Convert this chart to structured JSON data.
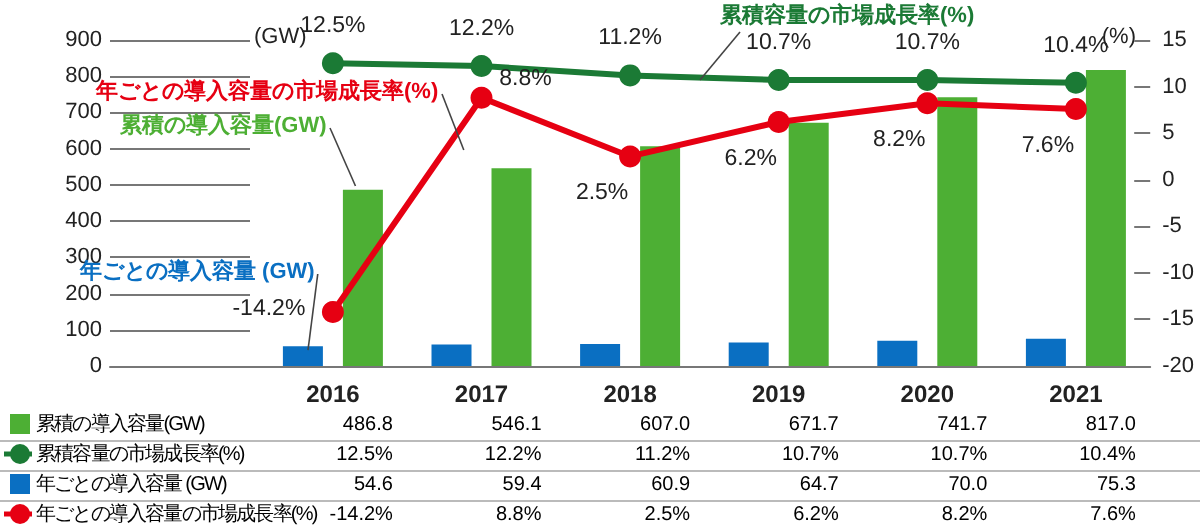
{
  "chart_data": {
    "type": "bar",
    "categories": [
      "2016",
      "2017",
      "2018",
      "2019",
      "2020",
      "2021"
    ],
    "series": [
      {
        "name": "累積の導入容量(GW)",
        "color": "#4daf34",
        "values": [
          486.8,
          546.1,
          607.0,
          671.7,
          741.7,
          817.0
        ],
        "value_labels": [
          "486.8",
          "546.1",
          "607.0",
          "671.7",
          "741.7",
          "817.0"
        ]
      },
      {
        "name": "累積容量の市場成長率(%)",
        "type": "line",
        "axis": "y2",
        "color": "#1b7a35",
        "values": [
          12.5,
          12.2,
          11.2,
          10.7,
          10.7,
          10.4
        ],
        "value_labels": [
          "12.5%",
          "12.2%",
          "11.2%",
          "10.7%",
          "10.7%",
          "10.4%"
        ]
      },
      {
        "name": "年ごとの導入容量 (GW)",
        "color": "#0a6fc2",
        "values": [
          54.6,
          59.4,
          60.9,
          64.7,
          70.0,
          75.3
        ],
        "value_labels": [
          "54.6",
          "59.4",
          "60.9",
          "64.7",
          "70.0",
          "75.3"
        ]
      },
      {
        "name": "年ごとの導入容量の市場成長率(%)",
        "type": "line",
        "axis": "y2",
        "color": "#e60012",
        "values": [
          -14.2,
          8.8,
          2.5,
          6.2,
          8.2,
          7.6
        ],
        "value_labels": [
          "-14.2%",
          "8.8%",
          "2.5%",
          "6.2%",
          "8.2%",
          "7.6%"
        ]
      }
    ],
    "ylabel": "(GW)",
    "y2label": "(%)",
    "ylim": [
      0,
      900
    ],
    "yticks": [
      0,
      100,
      200,
      300,
      400,
      500,
      600,
      700,
      800,
      900
    ],
    "y2lim": [
      -20,
      15
    ],
    "y2ticks": [
      -20,
      -15,
      -10,
      -5,
      0,
      5,
      10,
      15
    ],
    "annotations": [
      "累積の導入容量(GW)",
      "累積容量の市場成長率(%)",
      {
        "text": "年ごとの導入容量 (GW)",
        "x": "2016",
        "y": 54.6
      },
      "年ごとの導入容量の市場成長率(%)"
    ],
    "legend": "bottom",
    "marker": "circle",
    "line_style": "solid",
    "grid": false
  }
}
